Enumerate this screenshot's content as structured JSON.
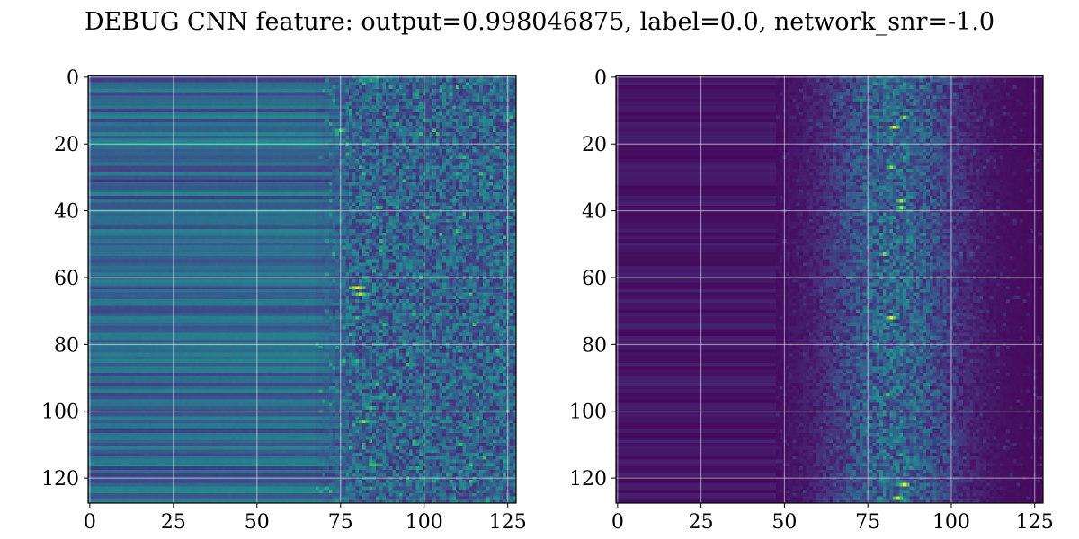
{
  "figure": {
    "title": "DEBUG CNN feature: output=0.998046875, label=0.0, network_snr=-1.0"
  },
  "chart_data": [
    {
      "type": "heatmap",
      "title": "",
      "xlabel": "",
      "ylabel": "",
      "colormap": "viridis",
      "grid": true,
      "xlim": [
        -0.5,
        127.5
      ],
      "ylim": [
        127.5,
        -0.5
      ],
      "x_ticks": [
        0,
        25,
        50,
        75,
        100,
        125
      ],
      "y_ticks": [
        0,
        20,
        40,
        60,
        80,
        100,
        120
      ],
      "x_tick_labels": [
        "0",
        "25",
        "50",
        "75",
        "100",
        "125"
      ],
      "y_tick_labels": [
        "0",
        "20",
        "40",
        "60",
        "80",
        "100",
        "120"
      ],
      "shape": [
        128,
        128
      ],
      "description_pattern": "row-constant banding in columns 0-70 (mid blue-teal); noisy teal/green speckle in columns 70-127; bright yellow spots near (x=80, y=63) and (x=80, y=65)",
      "hotspots": [
        {
          "x": 80,
          "y": 63,
          "value": 1.0
        },
        {
          "x": 81,
          "y": 65,
          "value": 0.9
        },
        {
          "x": 75,
          "y": 16,
          "value": 0.75
        },
        {
          "x": 82,
          "y": 103,
          "value": 0.8
        },
        {
          "x": 84,
          "y": 99,
          "value": 0.7
        }
      ]
    },
    {
      "type": "heatmap",
      "title": "",
      "xlabel": "",
      "ylabel": "",
      "colormap": "viridis",
      "grid": true,
      "xlim": [
        -0.5,
        127.5
      ],
      "ylim": [
        127.5,
        -0.5
      ],
      "x_ticks": [
        0,
        25,
        50,
        75,
        100,
        125
      ],
      "y_ticks": [
        0,
        20,
        40,
        60,
        80,
        100,
        120
      ],
      "x_tick_labels": [
        "0",
        "25",
        "50",
        "75",
        "100",
        "125"
      ],
      "y_tick_labels": [
        "0",
        "20",
        "40",
        "60",
        "80",
        "100",
        "120"
      ],
      "shape": [
        128,
        128
      ],
      "description_pattern": "dark purple background in columns 0-45; speckled blue/teal band in columns 50-110 peaking around column 83; yellow hotspots scattered along column 80-88",
      "hotspots": [
        {
          "x": 83,
          "y": 15,
          "value": 1.0
        },
        {
          "x": 82,
          "y": 27,
          "value": 0.85
        },
        {
          "x": 85,
          "y": 37,
          "value": 0.9
        },
        {
          "x": 85,
          "y": 39,
          "value": 0.85
        },
        {
          "x": 80,
          "y": 53,
          "value": 0.8
        },
        {
          "x": 82,
          "y": 72,
          "value": 1.0
        },
        {
          "x": 81,
          "y": 95,
          "value": 0.7
        },
        {
          "x": 86,
          "y": 122,
          "value": 1.0
        },
        {
          "x": 84,
          "y": 126,
          "value": 0.95
        },
        {
          "x": 86,
          "y": 12,
          "value": 0.8
        }
      ]
    }
  ]
}
